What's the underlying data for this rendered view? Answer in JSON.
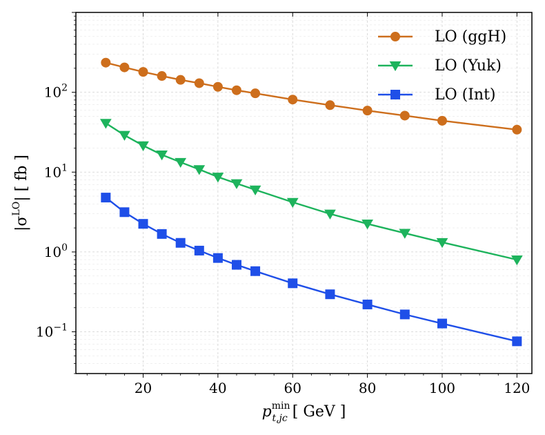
{
  "chart_data": {
    "type": "line",
    "x": [
      10,
      15,
      20,
      25,
      30,
      35,
      40,
      45,
      50,
      60,
      70,
      80,
      90,
      100,
      120
    ],
    "series": [
      {
        "name": "LO (ggH)",
        "color": "#cd6e1c",
        "marker": "circle",
        "values": [
          235,
          205,
          180,
          160,
          143,
          130,
          117,
          106,
          97,
          81,
          69,
          59,
          51,
          44,
          34
        ]
      },
      {
        "name": "LO (Yuk)",
        "color": "#1db35c",
        "marker": "triangle-down",
        "values": [
          41,
          29,
          21.5,
          16.5,
          13.3,
          10.8,
          8.7,
          7.2,
          6.0,
          4.2,
          3.0,
          2.25,
          1.72,
          1.32,
          0.8
        ]
      },
      {
        "name": "LO (Int)",
        "color": "#1f4fe8",
        "marker": "square",
        "values": [
          4.8,
          3.15,
          2.25,
          1.68,
          1.3,
          1.04,
          0.84,
          0.69,
          0.575,
          0.405,
          0.295,
          0.22,
          0.165,
          0.127,
          0.076
        ]
      }
    ],
    "xlim": [
      2,
      124
    ],
    "ylim": [
      0.03,
      1000
    ],
    "yscale": "log",
    "xticks": [
      20,
      40,
      60,
      80,
      100,
      120
    ],
    "ytick_labels": [
      {
        "value": 0.1,
        "base": "10",
        "exp": "−1"
      },
      {
        "value": 1,
        "base": "10",
        "exp": "0"
      },
      {
        "value": 10,
        "base": "10",
        "exp": "1"
      },
      {
        "value": 100,
        "base": "10",
        "exp": "2"
      }
    ],
    "xlabel": {
      "main": "p",
      "sup": "min",
      "sub": "t,jc",
      "unit": " [ GeV ]"
    },
    "ylabel": {
      "pre": "|σ",
      "sup": "LO",
      "post": "| [ fb ]"
    },
    "legend_position": "top-right",
    "grid": true
  }
}
